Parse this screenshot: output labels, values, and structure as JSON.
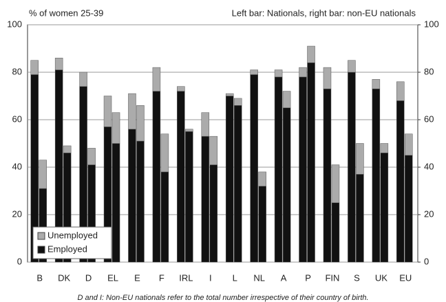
{
  "chart_data": {
    "type": "bar",
    "title": "% of women 25-39",
    "subtitle": "Left bar: Nationals, right bar: non-EU nationals",
    "note": "D and I: Non-EU nationals refer to the total number irrespective of their country of birth.",
    "stacked": true,
    "categories": [
      "B",
      "DK",
      "D",
      "EL",
      "E",
      "F",
      "IRL",
      "I",
      "L",
      "NL",
      "A",
      "P",
      "FIN",
      "S",
      "UK",
      "EU"
    ],
    "series": [
      {
        "name": "Employed",
        "color": "#111111",
        "values": [
          [
            79,
            31
          ],
          [
            81,
            46
          ],
          [
            74,
            41
          ],
          [
            57,
            50
          ],
          [
            56,
            51
          ],
          [
            72,
            38
          ],
          [
            72,
            55
          ],
          [
            53,
            41
          ],
          [
            70,
            66
          ],
          [
            79,
            32
          ],
          [
            78,
            65
          ],
          [
            78,
            84
          ],
          [
            73,
            25
          ],
          [
            80,
            37
          ],
          [
            73,
            46
          ],
          [
            68,
            45
          ]
        ]
      },
      {
        "name": "Unemployed",
        "color": "#ababab",
        "values": [
          [
            6,
            12
          ],
          [
            5,
            3
          ],
          [
            6,
            7
          ],
          [
            13,
            13
          ],
          [
            15,
            15
          ],
          [
            10,
            16
          ],
          [
            2,
            1
          ],
          [
            10,
            12
          ],
          [
            1,
            3
          ],
          [
            2,
            6
          ],
          [
            3,
            7
          ],
          [
            4,
            7
          ],
          [
            9,
            16
          ],
          [
            5,
            13
          ],
          [
            4,
            4
          ],
          [
            8,
            9
          ]
        ]
      }
    ],
    "ylim": [
      0,
      100
    ],
    "yticks": [
      0,
      20,
      40,
      60,
      80,
      100
    ],
    "y2lim": [
      0,
      100
    ],
    "y2ticks": [
      0,
      20,
      40,
      60,
      80,
      100
    ],
    "grid": true,
    "legend": "lower left"
  }
}
